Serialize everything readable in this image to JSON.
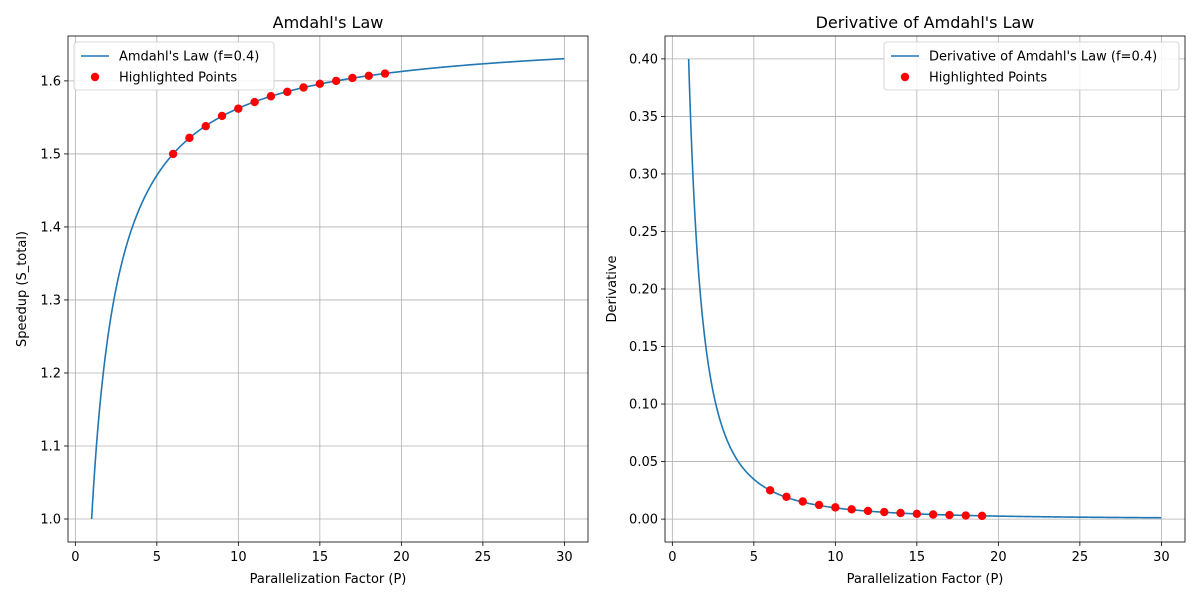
{
  "chart_data": [
    {
      "type": "line",
      "title": "Amdahl's Law",
      "xlabel": "Parallelization Factor (P)",
      "ylabel": "Speedup (S_total)",
      "xlim": [
        -0.45,
        31.45
      ],
      "ylim": [
        0.9685,
        1.6615
      ],
      "xticks": [
        0,
        5,
        10,
        15,
        20,
        25,
        30
      ],
      "xtick_labels": [
        "0",
        "5",
        "10",
        "15",
        "20",
        "25",
        "30"
      ],
      "yticks": [
        1.0,
        1.1,
        1.2,
        1.3,
        1.4,
        1.5,
        1.6
      ],
      "ytick_labels": [
        "1.0",
        "1.1",
        "1.2",
        "1.3",
        "1.4",
        "1.5",
        "1.6"
      ],
      "grid": true,
      "legend": "top-left",
      "curve": {
        "name": "Amdahl's Law (f=0.4)",
        "f": 0.4,
        "x_range": [
          1,
          30
        ],
        "function": "speedup",
        "color": "#1f77b4"
      },
      "scatter": {
        "name": "Highlighted Points",
        "color": "#ff0000",
        "x": [
          6,
          7,
          8,
          9,
          10,
          11,
          12,
          13,
          14,
          15,
          16,
          17,
          18,
          19
        ],
        "y": [
          1.5,
          1.522,
          1.538,
          1.552,
          1.562,
          1.571,
          1.579,
          1.585,
          1.591,
          1.596,
          1.6,
          1.604,
          1.607,
          1.61
        ]
      }
    },
    {
      "type": "line",
      "title": "Derivative of Amdahl's Law",
      "xlabel": "Parallelization Factor (P)",
      "ylabel": "Derivative",
      "xlim": [
        -0.45,
        31.45
      ],
      "ylim": [
        -0.0199,
        0.4199
      ],
      "xticks": [
        0,
        5,
        10,
        15,
        20,
        25,
        30
      ],
      "xtick_labels": [
        "0",
        "5",
        "10",
        "15",
        "20",
        "25",
        "30"
      ],
      "yticks": [
        0.0,
        0.05,
        0.1,
        0.15,
        0.2,
        0.25,
        0.3,
        0.35,
        0.4
      ],
      "ytick_labels": [
        "0.00",
        "0.05",
        "0.10",
        "0.15",
        "0.20",
        "0.25",
        "0.30",
        "0.35",
        "0.40"
      ],
      "grid": true,
      "legend": "top-right",
      "curve": {
        "name": "Derivative of Amdahl's Law (f=0.4)",
        "f": 0.4,
        "x_range": [
          1,
          30
        ],
        "function": "derivative",
        "color": "#1f77b4"
      },
      "scatter": {
        "name": "Highlighted Points",
        "color": "#ff0000",
        "x": [
          6,
          7,
          8,
          9,
          10,
          11,
          12,
          13,
          14,
          15,
          16,
          17,
          18,
          19
        ],
        "y": [
          0.025,
          0.0194,
          0.0153,
          0.0123,
          0.0102,
          0.0085,
          0.0071,
          0.0061,
          0.0053,
          0.0046,
          0.004,
          0.0035,
          0.0031,
          0.0028
        ]
      }
    }
  ]
}
